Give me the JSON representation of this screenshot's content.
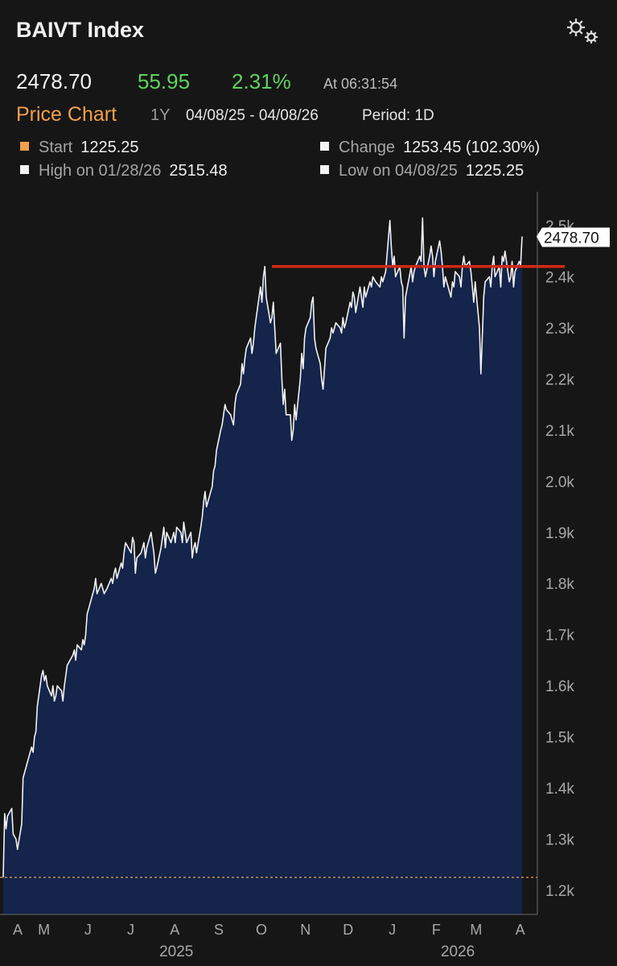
{
  "header": {
    "title": "BAIVT Index",
    "gear_icon": "settings-gear-icon"
  },
  "quote": {
    "last": "2478.70",
    "change": "55.95",
    "change_pct": "2.31%",
    "time": "At 06:31:54",
    "up_color": "#5fd35f"
  },
  "chart_header": {
    "title": "Price Chart",
    "range": "1Y",
    "dates": "04/08/25 - 04/08/26",
    "period": "Period: 1D"
  },
  "stats": {
    "start_label": "Start",
    "start_value": "1225.25",
    "change_label": "Change",
    "change_value": "1253.45 (102.30%)",
    "high_label": "High on 01/28/26",
    "high_value": "2515.48",
    "low_label": "Low on 04/08/25",
    "low_value": "1225.25"
  },
  "chart_data": {
    "type": "area",
    "title": "",
    "xlabel": "",
    "ylabel": "",
    "ylim": [
      1150,
      2560
    ],
    "y_ticks": [
      1200,
      1300,
      1400,
      1500,
      1600,
      1700,
      1800,
      1900,
      2000,
      2100,
      2200,
      2300,
      2400,
      2500
    ],
    "y_tick_labels": [
      "1.2k",
      "1.3k",
      "1.4k",
      "1.5k",
      "1.6k",
      "1.7k",
      "1.8k",
      "1.9k",
      "2.0k",
      "2.1k",
      "2.2k",
      "2.3k",
      "2.4k",
      "2.5k"
    ],
    "x_start": "2025-04-08",
    "x_end": "2026-04-08",
    "month_labels": [
      {
        "date": "2025-04-08",
        "label": "A"
      },
      {
        "date": "2025-05-01",
        "label": "M"
      },
      {
        "date": "2025-06-01",
        "label": "J"
      },
      {
        "date": "2025-07-01",
        "label": "J"
      },
      {
        "date": "2025-08-01",
        "label": "A"
      },
      {
        "date": "2025-09-01",
        "label": "S"
      },
      {
        "date": "2025-10-01",
        "label": "O"
      },
      {
        "date": "2025-11-01",
        "label": "N"
      },
      {
        "date": "2025-12-01",
        "label": "D"
      },
      {
        "date": "2026-01-01",
        "label": "J"
      },
      {
        "date": "2026-02-01",
        "label": "F"
      },
      {
        "date": "2026-03-01",
        "label": "M"
      },
      {
        "date": "2026-04-01",
        "label": "A"
      }
    ],
    "year_labels": [
      {
        "date": "2025-08-01",
        "label": "2025"
      },
      {
        "date": "2026-02-15",
        "label": "2026"
      }
    ],
    "series": [
      {
        "values": [
          [
            "2025-04-08",
            1225
          ],
          [
            "2025-04-09",
            1350
          ],
          [
            "2025-04-10",
            1320
          ],
          [
            "2025-04-11",
            1345
          ],
          [
            "2025-04-14",
            1360
          ],
          [
            "2025-04-15",
            1310
          ],
          [
            "2025-04-17",
            1300
          ],
          [
            "2025-04-18",
            1280
          ],
          [
            "2025-04-21",
            1330
          ],
          [
            "2025-04-22",
            1420
          ],
          [
            "2025-04-23",
            1430
          ],
          [
            "2025-04-24",
            1440
          ],
          [
            "2025-04-25",
            1450
          ],
          [
            "2025-04-28",
            1480
          ],
          [
            "2025-04-29",
            1470
          ],
          [
            "2025-04-30",
            1500
          ],
          [
            "2025-05-01",
            1510
          ],
          [
            "2025-05-02",
            1560
          ],
          [
            "2025-05-05",
            1620
          ],
          [
            "2025-05-06",
            1630
          ],
          [
            "2025-05-07",
            1610
          ],
          [
            "2025-05-08",
            1620
          ],
          [
            "2025-05-09",
            1600
          ],
          [
            "2025-05-12",
            1580
          ],
          [
            "2025-05-13",
            1600
          ],
          [
            "2025-05-14",
            1570
          ],
          [
            "2025-05-15",
            1580
          ],
          [
            "2025-05-16",
            1600
          ],
          [
            "2025-05-19",
            1590
          ],
          [
            "2025-05-20",
            1570
          ],
          [
            "2025-05-21",
            1600
          ],
          [
            "2025-05-22",
            1620
          ],
          [
            "2025-05-23",
            1640
          ],
          [
            "2025-05-27",
            1660
          ],
          [
            "2025-05-28",
            1670
          ],
          [
            "2025-05-29",
            1650
          ],
          [
            "2025-05-30",
            1680
          ],
          [
            "2025-06-02",
            1670
          ],
          [
            "2025-06-03",
            1690
          ],
          [
            "2025-06-04",
            1680
          ],
          [
            "2025-06-05",
            1700
          ],
          [
            "2025-06-06",
            1740
          ],
          [
            "2025-06-09",
            1770
          ],
          [
            "2025-06-10",
            1780
          ],
          [
            "2025-06-11",
            1790
          ],
          [
            "2025-06-12",
            1810
          ],
          [
            "2025-06-13",
            1780
          ],
          [
            "2025-06-16",
            1800
          ],
          [
            "2025-06-17",
            1790
          ],
          [
            "2025-06-18",
            1780
          ],
          [
            "2025-06-20",
            1790
          ],
          [
            "2025-06-23",
            1810
          ],
          [
            "2025-06-24",
            1800
          ],
          [
            "2025-06-25",
            1820
          ],
          [
            "2025-06-26",
            1830
          ],
          [
            "2025-06-27",
            1810
          ],
          [
            "2025-06-30",
            1840
          ],
          [
            "2025-07-01",
            1830
          ],
          [
            "2025-07-02",
            1860
          ],
          [
            "2025-07-03",
            1880
          ],
          [
            "2025-07-07",
            1860
          ],
          [
            "2025-07-08",
            1890
          ],
          [
            "2025-07-09",
            1880
          ],
          [
            "2025-07-10",
            1820
          ],
          [
            "2025-07-11",
            1850
          ],
          [
            "2025-07-14",
            1860
          ],
          [
            "2025-07-15",
            1870
          ],
          [
            "2025-07-16",
            1880
          ],
          [
            "2025-07-17",
            1850
          ],
          [
            "2025-07-18",
            1870
          ],
          [
            "2025-07-21",
            1900
          ],
          [
            "2025-07-22",
            1880
          ],
          [
            "2025-07-23",
            1860
          ],
          [
            "2025-07-24",
            1820
          ],
          [
            "2025-07-25",
            1830
          ],
          [
            "2025-07-28",
            1870
          ],
          [
            "2025-07-29",
            1890
          ],
          [
            "2025-07-30",
            1910
          ],
          [
            "2025-07-31",
            1870
          ],
          [
            "2025-08-01",
            1900
          ],
          [
            "2025-08-04",
            1880
          ],
          [
            "2025-08-05",
            1890
          ],
          [
            "2025-08-06",
            1900
          ],
          [
            "2025-08-07",
            1880
          ],
          [
            "2025-08-08",
            1910
          ],
          [
            "2025-08-11",
            1900
          ],
          [
            "2025-08-12",
            1880
          ],
          [
            "2025-08-13",
            1920
          ],
          [
            "2025-08-14",
            1900
          ],
          [
            "2025-08-15",
            1880
          ],
          [
            "2025-08-18",
            1900
          ],
          [
            "2025-08-19",
            1850
          ],
          [
            "2025-08-20",
            1870
          ],
          [
            "2025-08-21",
            1880
          ],
          [
            "2025-08-22",
            1860
          ],
          [
            "2025-08-25",
            1910
          ],
          [
            "2025-08-26",
            1930
          ],
          [
            "2025-08-27",
            1960
          ],
          [
            "2025-08-28",
            1980
          ],
          [
            "2025-08-29",
            1950
          ],
          [
            "2025-09-02",
            1990
          ],
          [
            "2025-09-03",
            2020
          ],
          [
            "2025-09-04",
            2030
          ],
          [
            "2025-09-05",
            2060
          ],
          [
            "2025-09-08",
            2100
          ],
          [
            "2025-09-09",
            2110
          ],
          [
            "2025-09-10",
            2130
          ],
          [
            "2025-09-11",
            2150
          ],
          [
            "2025-09-12",
            2140
          ],
          [
            "2025-09-15",
            2130
          ],
          [
            "2025-09-16",
            2120
          ],
          [
            "2025-09-17",
            2110
          ],
          [
            "2025-09-18",
            2150
          ],
          [
            "2025-09-19",
            2170
          ],
          [
            "2025-09-22",
            2190
          ],
          [
            "2025-09-23",
            2230
          ],
          [
            "2025-09-24",
            2210
          ],
          [
            "2025-09-25",
            2240
          ],
          [
            "2025-09-26",
            2260
          ],
          [
            "2025-09-29",
            2280
          ],
          [
            "2025-09-30",
            2250
          ],
          [
            "2025-10-01",
            2270
          ],
          [
            "2025-10-02",
            2300
          ],
          [
            "2025-10-03",
            2320
          ],
          [
            "2025-10-06",
            2380
          ],
          [
            "2025-10-07",
            2350
          ],
          [
            "2025-10-08",
            2400
          ],
          [
            "2025-10-09",
            2420
          ],
          [
            "2025-10-10",
            2360
          ],
          [
            "2025-10-13",
            2310
          ],
          [
            "2025-10-14",
            2320
          ],
          [
            "2025-10-15",
            2350
          ],
          [
            "2025-10-16",
            2300
          ],
          [
            "2025-10-17",
            2250
          ],
          [
            "2025-10-20",
            2270
          ],
          [
            "2025-10-21",
            2200
          ],
          [
            "2025-10-22",
            2150
          ],
          [
            "2025-10-23",
            2180
          ],
          [
            "2025-10-24",
            2130
          ],
          [
            "2025-10-27",
            2130
          ],
          [
            "2025-10-28",
            2080
          ],
          [
            "2025-10-29",
            2100
          ],
          [
            "2025-10-30",
            2150
          ],
          [
            "2025-10-31",
            2120
          ],
          [
            "2025-11-03",
            2200
          ],
          [
            "2025-11-04",
            2250
          ],
          [
            "2025-11-05",
            2220
          ],
          [
            "2025-11-06",
            2280
          ],
          [
            "2025-11-07",
            2300
          ],
          [
            "2025-11-10",
            2320
          ],
          [
            "2025-11-11",
            2350
          ],
          [
            "2025-11-12",
            2360
          ],
          [
            "2025-11-13",
            2280
          ],
          [
            "2025-11-14",
            2260
          ],
          [
            "2025-11-17",
            2230
          ],
          [
            "2025-11-18",
            2200
          ],
          [
            "2025-11-19",
            2180
          ],
          [
            "2025-11-20",
            2220
          ],
          [
            "2025-11-21",
            2260
          ],
          [
            "2025-11-24",
            2280
          ],
          [
            "2025-11-25",
            2300
          ],
          [
            "2025-11-26",
            2290
          ],
          [
            "2025-11-28",
            2310
          ],
          [
            "2025-12-01",
            2300
          ],
          [
            "2025-12-02",
            2290
          ],
          [
            "2025-12-03",
            2320
          ],
          [
            "2025-12-04",
            2300
          ],
          [
            "2025-12-05",
            2310
          ],
          [
            "2025-12-08",
            2350
          ],
          [
            "2025-12-09",
            2340
          ],
          [
            "2025-12-10",
            2370
          ],
          [
            "2025-12-11",
            2360
          ],
          [
            "2025-12-12",
            2330
          ],
          [
            "2025-12-15",
            2380
          ],
          [
            "2025-12-16",
            2360
          ],
          [
            "2025-12-17",
            2340
          ],
          [
            "2025-12-18",
            2380
          ],
          [
            "2025-12-19",
            2360
          ],
          [
            "2025-12-22",
            2390
          ],
          [
            "2025-12-23",
            2380
          ],
          [
            "2025-12-24",
            2400
          ],
          [
            "2025-12-26",
            2390
          ],
          [
            "2025-12-29",
            2380
          ],
          [
            "2025-12-30",
            2400
          ],
          [
            "2025-12-31",
            2390
          ],
          [
            "2026-01-02",
            2410
          ],
          [
            "2026-01-05",
            2510
          ],
          [
            "2026-01-06",
            2460
          ],
          [
            "2026-01-07",
            2420
          ],
          [
            "2026-01-08",
            2440
          ],
          [
            "2026-01-09",
            2400
          ],
          [
            "2026-01-12",
            2420
          ],
          [
            "2026-01-13",
            2390
          ],
          [
            "2026-01-14",
            2380
          ],
          [
            "2026-01-15",
            2280
          ],
          [
            "2026-01-16",
            2360
          ],
          [
            "2026-01-20",
            2420
          ],
          [
            "2026-01-21",
            2390
          ],
          [
            "2026-01-22",
            2410
          ],
          [
            "2026-01-23",
            2420
          ],
          [
            "2026-01-26",
            2440
          ],
          [
            "2026-01-27",
            2430
          ],
          [
            "2026-01-28",
            2515
          ],
          [
            "2026-01-29",
            2420
          ],
          [
            "2026-01-30",
            2400
          ],
          [
            "2026-02-02",
            2440
          ],
          [
            "2026-02-03",
            2460
          ],
          [
            "2026-02-04",
            2440
          ],
          [
            "2026-02-05",
            2400
          ],
          [
            "2026-02-06",
            2430
          ],
          [
            "2026-02-09",
            2470
          ],
          [
            "2026-02-10",
            2450
          ],
          [
            "2026-02-11",
            2420
          ],
          [
            "2026-02-12",
            2380
          ],
          [
            "2026-02-13",
            2400
          ],
          [
            "2026-02-17",
            2360
          ],
          [
            "2026-02-18",
            2390
          ],
          [
            "2026-02-19",
            2380
          ],
          [
            "2026-02-20",
            2410
          ],
          [
            "2026-02-23",
            2400
          ],
          [
            "2026-02-24",
            2380
          ],
          [
            "2026-02-25",
            2420
          ],
          [
            "2026-02-26",
            2440
          ],
          [
            "2026-02-27",
            2420
          ],
          [
            "2026-03-02",
            2430
          ],
          [
            "2026-03-03",
            2410
          ],
          [
            "2026-03-04",
            2380
          ],
          [
            "2026-03-05",
            2350
          ],
          [
            "2026-03-06",
            2390
          ],
          [
            "2026-03-09",
            2300
          ],
          [
            "2026-03-10",
            2210
          ],
          [
            "2026-03-11",
            2280
          ],
          [
            "2026-03-12",
            2360
          ],
          [
            "2026-03-13",
            2390
          ],
          [
            "2026-03-16",
            2400
          ],
          [
            "2026-03-17",
            2380
          ],
          [
            "2026-03-18",
            2420
          ],
          [
            "2026-03-19",
            2440
          ],
          [
            "2026-03-20",
            2400
          ],
          [
            "2026-03-23",
            2420
          ],
          [
            "2026-03-24",
            2380
          ],
          [
            "2026-03-25",
            2440
          ],
          [
            "2026-03-26",
            2430
          ],
          [
            "2026-03-27",
            2450
          ],
          [
            "2026-03-30",
            2390
          ],
          [
            "2026-03-31",
            2400
          ],
          [
            "2026-04-01",
            2430
          ],
          [
            "2026-04-02",
            2380
          ],
          [
            "2026-04-03",
            2410
          ],
          [
            "2026-04-06",
            2430
          ],
          [
            "2026-04-07",
            2423
          ],
          [
            "2026-04-08",
            2478.7
          ]
        ]
      }
    ],
    "last_value_label": "2478.70",
    "annotations": {
      "resistance_level": 2420,
      "resistance_from": "2025-10-01",
      "resistance_to": "2026-04-08",
      "start_level": 1225.25
    },
    "colors": {
      "line": "#f2f2f2",
      "area": "#14244a",
      "resistance": "#d32714",
      "start_line": "#f0a04b"
    }
  }
}
